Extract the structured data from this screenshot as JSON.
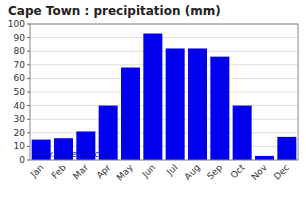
{
  "chart_data": {
    "type": "bar",
    "title": "Cape Town : precipitation (mm)",
    "categories": [
      "Jan",
      "Feb",
      "Mar",
      "Apr",
      "May",
      "Jun",
      "Jul",
      "Aug",
      "Sep",
      "Oct",
      "Nov",
      "Dec"
    ],
    "values": [
      15,
      16,
      21,
      40,
      68,
      93,
      82,
      82,
      76,
      40,
      3,
      17
    ],
    "color": "#0000EE",
    "ylim": [
      0,
      100
    ],
    "yticks": [
      0,
      10,
      20,
      30,
      40,
      50,
      60,
      70,
      80,
      90,
      100
    ],
    "grid": true,
    "annotations": [
      {
        "text": "www.allmetsat.com",
        "color": "#0000CC"
      }
    ]
  }
}
